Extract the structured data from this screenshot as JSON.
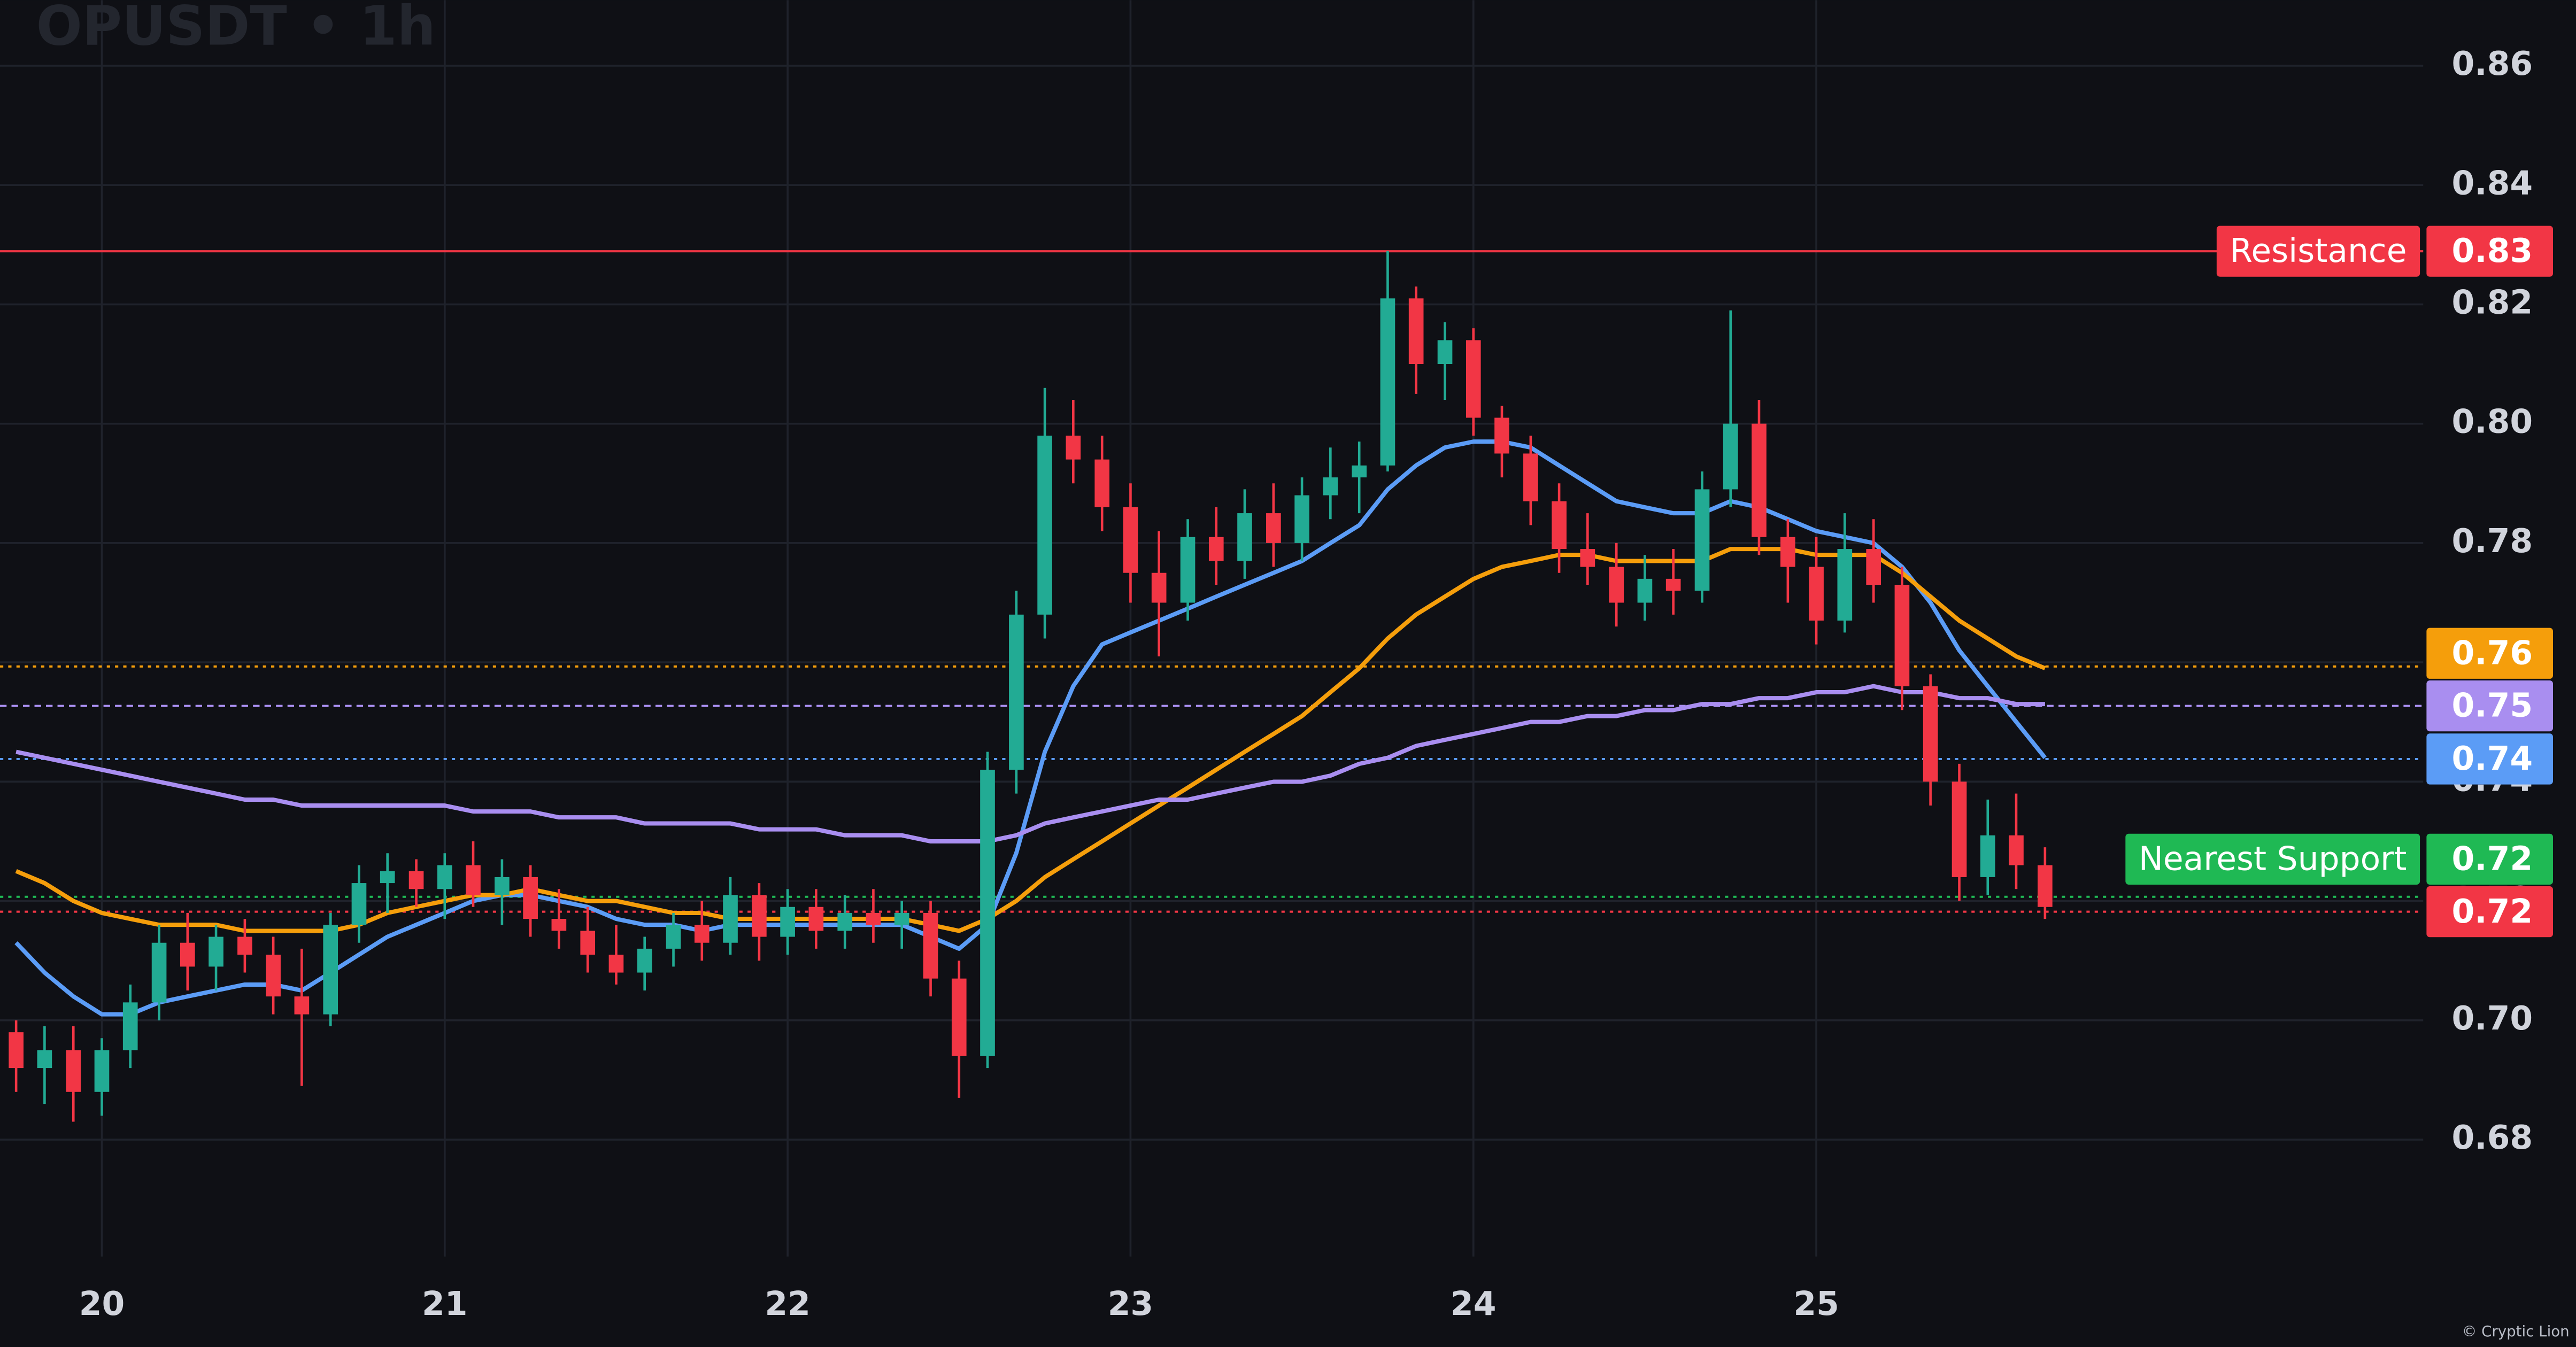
{
  "chart_data": {
    "type": "candlestick",
    "title": "OPUSDT • 1h",
    "watermark": "© Cryptic Lion",
    "x": [
      19.75,
      19.833,
      19.917,
      20,
      20.083,
      20.167,
      20.25,
      20.333,
      20.417,
      20.5,
      20.583,
      20.667,
      20.75,
      20.833,
      20.917,
      21,
      21.083,
      21.167,
      21.25,
      21.333,
      21.417,
      21.5,
      21.583,
      21.667,
      21.75,
      21.833,
      21.917,
      22,
      22.083,
      22.167,
      22.25,
      22.333,
      22.417,
      22.5,
      22.583,
      22.667,
      22.75,
      22.833,
      22.917,
      23,
      23.083,
      23.167,
      23.25,
      23.333,
      23.417,
      23.5,
      23.583,
      23.667,
      23.75,
      23.833,
      23.917,
      24,
      24.083,
      24.167,
      24.25,
      24.333,
      24.417,
      24.5,
      24.583,
      24.667,
      24.75,
      24.833,
      24.917,
      25,
      25.083,
      25.167,
      25.25,
      25.333,
      25.417,
      25.5,
      25.583,
      25.667
    ],
    "open": [
      0.698,
      0.692,
      0.695,
      0.688,
      0.695,
      0.703,
      0.713,
      0.709,
      0.714,
      0.711,
      0.704,
      0.701,
      0.716,
      0.723,
      0.725,
      0.722,
      0.726,
      0.721,
      0.724,
      0.717,
      0.715,
      0.711,
      0.708,
      0.712,
      0.716,
      0.713,
      0.721,
      0.714,
      0.719,
      0.715,
      0.718,
      0.716,
      0.718,
      0.707,
      0.694,
      0.742,
      0.768,
      0.798,
      0.794,
      0.786,
      0.775,
      0.77,
      0.781,
      0.777,
      0.785,
      0.78,
      0.788,
      0.791,
      0.793,
      0.821,
      0.81,
      0.814,
      0.801,
      0.795,
      0.787,
      0.779,
      0.776,
      0.77,
      0.774,
      0.772,
      0.789,
      0.8,
      0.781,
      0.776,
      0.767,
      0.779,
      0.773,
      0.756,
      0.74,
      0.724,
      0.731,
      0.726
    ],
    "high": [
      0.7,
      0.699,
      0.699,
      0.697,
      0.706,
      0.716,
      0.718,
      0.716,
      0.717,
      0.714,
      0.712,
      0.718,
      0.726,
      0.728,
      0.727,
      0.728,
      0.73,
      0.727,
      0.726,
      0.722,
      0.719,
      0.716,
      0.714,
      0.718,
      0.72,
      0.724,
      0.723,
      0.722,
      0.722,
      0.721,
      0.722,
      0.72,
      0.72,
      0.71,
      0.745,
      0.772,
      0.806,
      0.804,
      0.798,
      0.79,
      0.782,
      0.784,
      0.786,
      0.789,
      0.79,
      0.791,
      0.796,
      0.797,
      0.829,
      0.823,
      0.817,
      0.816,
      0.803,
      0.798,
      0.79,
      0.785,
      0.78,
      0.778,
      0.779,
      0.792,
      0.819,
      0.804,
      0.784,
      0.781,
      0.785,
      0.784,
      0.776,
      0.758,
      0.743,
      0.737,
      0.738,
      0.729
    ],
    "low": [
      0.688,
      0.686,
      0.683,
      0.684,
      0.692,
      0.7,
      0.705,
      0.705,
      0.708,
      0.701,
      0.689,
      0.699,
      0.713,
      0.718,
      0.719,
      0.717,
      0.719,
      0.716,
      0.714,
      0.712,
      0.708,
      0.706,
      0.705,
      0.709,
      0.71,
      0.711,
      0.71,
      0.711,
      0.712,
      0.712,
      0.713,
      0.712,
      0.704,
      0.687,
      0.692,
      0.738,
      0.764,
      0.79,
      0.782,
      0.77,
      0.761,
      0.767,
      0.773,
      0.774,
      0.776,
      0.777,
      0.784,
      0.785,
      0.792,
      0.805,
      0.804,
      0.798,
      0.791,
      0.783,
      0.775,
      0.773,
      0.766,
      0.767,
      0.768,
      0.77,
      0.786,
      0.778,
      0.77,
      0.763,
      0.765,
      0.77,
      0.752,
      0.736,
      0.72,
      0.721,
      0.722,
      0.717
    ],
    "close": [
      0.692,
      0.695,
      0.688,
      0.695,
      0.703,
      0.713,
      0.709,
      0.714,
      0.711,
      0.704,
      0.701,
      0.716,
      0.723,
      0.725,
      0.722,
      0.726,
      0.721,
      0.724,
      0.717,
      0.715,
      0.711,
      0.708,
      0.712,
      0.716,
      0.713,
      0.721,
      0.714,
      0.719,
      0.715,
      0.718,
      0.716,
      0.718,
      0.707,
      0.694,
      0.742,
      0.768,
      0.798,
      0.794,
      0.786,
      0.775,
      0.77,
      0.781,
      0.777,
      0.785,
      0.78,
      0.788,
      0.791,
      0.793,
      0.821,
      0.81,
      0.814,
      0.801,
      0.795,
      0.787,
      0.779,
      0.776,
      0.77,
      0.774,
      0.772,
      0.789,
      0.8,
      0.781,
      0.776,
      0.767,
      0.779,
      0.773,
      0.756,
      0.74,
      0.724,
      0.731,
      0.726,
      0.719
    ],
    "up_color": "#22ab94",
    "down_color": "#f23645",
    "series": [
      {
        "color": "#5b9cf6",
        "values": [
          0.713,
          0.708,
          0.704,
          0.701,
          0.701,
          0.703,
          0.704,
          0.705,
          0.706,
          0.706,
          0.705,
          0.708,
          0.711,
          0.714,
          0.716,
          0.718,
          0.72,
          0.721,
          0.721,
          0.72,
          0.719,
          0.717,
          0.716,
          0.716,
          0.715,
          0.716,
          0.716,
          0.716,
          0.716,
          0.716,
          0.716,
          0.716,
          0.714,
          0.712,
          0.716,
          0.728,
          0.745,
          0.756,
          0.763,
          0.765,
          0.767,
          0.769,
          0.771,
          0.773,
          0.775,
          0.777,
          0.78,
          0.783,
          0.789,
          0.793,
          0.796,
          0.797,
          0.797,
          0.796,
          0.793,
          0.79,
          0.787,
          0.786,
          0.785,
          0.785,
          0.787,
          0.786,
          0.784,
          0.782,
          0.781,
          0.78,
          0.776,
          0.77,
          0.762,
          0.756,
          0.75,
          0.744
        ]
      },
      {
        "color": "#f59e0b",
        "values": [
          0.725,
          0.723,
          0.72,
          0.718,
          0.717,
          0.716,
          0.716,
          0.716,
          0.715,
          0.715,
          0.715,
          0.715,
          0.716,
          0.718,
          0.719,
          0.72,
          0.721,
          0.721,
          0.722,
          0.721,
          0.72,
          0.72,
          0.719,
          0.718,
          0.718,
          0.717,
          0.717,
          0.717,
          0.717,
          0.717,
          0.717,
          0.717,
          0.716,
          0.715,
          0.717,
          0.72,
          0.724,
          0.727,
          0.73,
          0.733,
          0.736,
          0.739,
          0.742,
          0.745,
          0.748,
          0.751,
          0.755,
          0.759,
          0.764,
          0.768,
          0.771,
          0.774,
          0.776,
          0.777,
          0.778,
          0.778,
          0.777,
          0.777,
          0.777,
          0.777,
          0.779,
          0.779,
          0.779,
          0.778,
          0.778,
          0.778,
          0.775,
          0.771,
          0.767,
          0.764,
          0.761,
          0.759
        ]
      },
      {
        "color": "#a98ef0",
        "values": [
          0.745,
          0.744,
          0.743,
          0.742,
          0.741,
          0.74,
          0.739,
          0.738,
          0.737,
          0.737,
          0.736,
          0.736,
          0.736,
          0.736,
          0.736,
          0.736,
          0.735,
          0.735,
          0.735,
          0.734,
          0.734,
          0.734,
          0.733,
          0.733,
          0.733,
          0.733,
          0.732,
          0.732,
          0.732,
          0.731,
          0.731,
          0.731,
          0.73,
          0.73,
          0.73,
          0.731,
          0.733,
          0.734,
          0.735,
          0.736,
          0.737,
          0.737,
          0.738,
          0.739,
          0.74,
          0.74,
          0.741,
          0.743,
          0.744,
          0.746,
          0.747,
          0.748,
          0.749,
          0.75,
          0.75,
          0.751,
          0.751,
          0.752,
          0.752,
          0.753,
          0.753,
          0.754,
          0.754,
          0.755,
          0.755,
          0.756,
          0.755,
          0.755,
          0.754,
          0.754,
          0.753,
          0.753
        ]
      }
    ],
    "price_lines": [
      {
        "name": "Resistance",
        "value": 0.8289,
        "value_label": "0.83",
        "color": "#f23645",
        "style": "solid"
      },
      {
        "value": 0.7593,
        "value_label": "0.76",
        "color": "#f59e0b",
        "style": "dotted"
      },
      {
        "value": 0.7527,
        "value_label": "0.75",
        "color": "#a98ef0",
        "style": "dashed"
      },
      {
        "value": 0.7438,
        "value_label": "0.74",
        "color": "#5b9cf6",
        "style": "dotted"
      },
      {
        "name": "Nearest Support",
        "value": 0.7207,
        "value_label": "0.72",
        "color": "#1fb954",
        "style": "dotted"
      },
      {
        "value": 0.7182,
        "value_label": "0.72",
        "color": "#f23645",
        "style": "dotted"
      }
    ],
    "xlim": [
      19.703,
      26.77
    ],
    "xticks": [
      20,
      21,
      22,
      23,
      24,
      25
    ],
    "ylim": [
      0.6604,
      0.871
    ],
    "yticks": [
      0.68,
      {
        "value": 0.7,
        "label": "0.70"
      },
      0.72,
      0.74,
      0.76,
      0.78,
      {
        "value": 0.8,
        "label": "0.80"
      },
      0.82,
      0.84,
      0.86
    ],
    "grid": true
  }
}
